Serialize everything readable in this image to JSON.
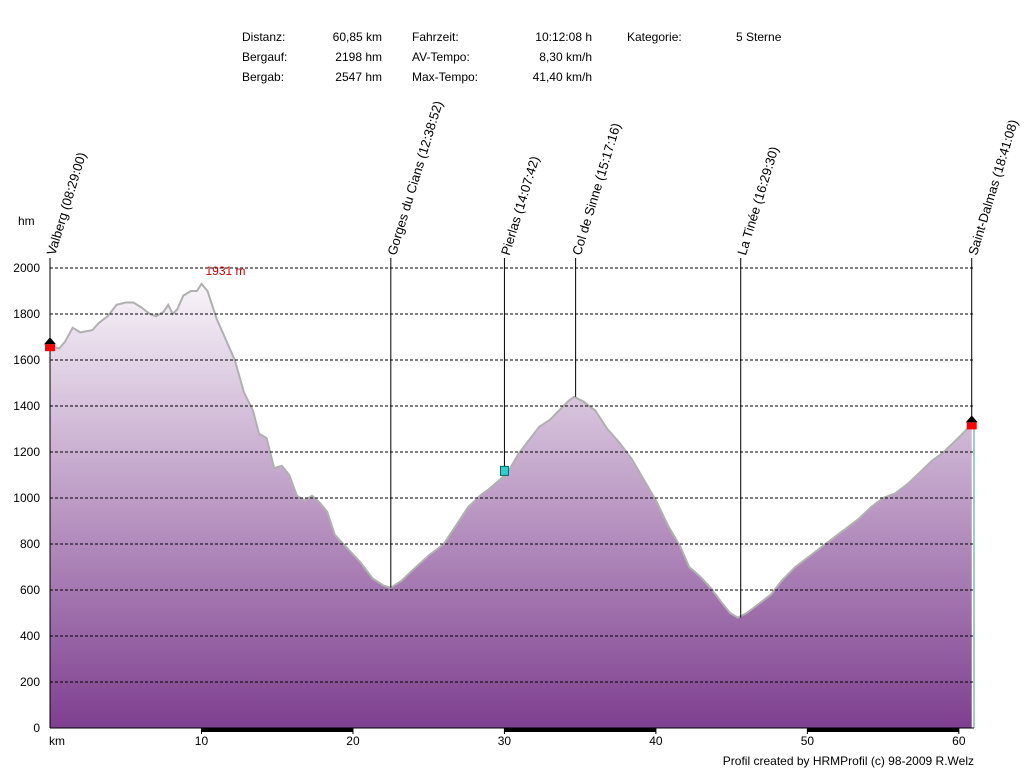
{
  "stats": {
    "col1": [
      {
        "label": "Distanz:",
        "value": "60,85 km"
      },
      {
        "label": "Bergauf:",
        "value": "2198 hm"
      },
      {
        "label": "Bergab:",
        "value": "2547 hm"
      }
    ],
    "col2": [
      {
        "label": "Fahrzeit:",
        "value": "10:12:08 h"
      },
      {
        "label": "AV-Tempo:",
        "value": "8,30 km/h"
      },
      {
        "label": "Max-Tempo:",
        "value": "41,40 km/h"
      }
    ],
    "col3": [
      {
        "label": "Kategorie:",
        "value": "5 Sterne"
      }
    ]
  },
  "footer": "Profil created by HRMProfil (c) 98-2009 R.Welz",
  "chart_data": {
    "type": "area",
    "ylabel": "hm",
    "xlabel": "km",
    "xlim": [
      0,
      61
    ],
    "ylim": [
      0,
      2000
    ],
    "yticks": [
      "0",
      "200",
      "400",
      "600",
      "800",
      "1000",
      "1200",
      "1400",
      "1600",
      "1800",
      "2000"
    ],
    "xticks": [
      "10",
      "20",
      "30",
      "40",
      "50",
      "60"
    ],
    "grid": true,
    "colors": {
      "fill_top": "#f8f4f9",
      "fill_bottom": "#7e3f8f",
      "outline": "#b0b0b0",
      "grid": "#000000",
      "marker": "#ff0000",
      "label_red": "#cc0000"
    },
    "max_label": "1931 m",
    "max_point": {
      "x": 10.0,
      "y": 1931
    },
    "profile": [
      [
        0,
        1660
      ],
      [
        0.6,
        1650
      ],
      [
        1.0,
        1680
      ],
      [
        1.5,
        1740
      ],
      [
        2.0,
        1720
      ],
      [
        2.8,
        1730
      ],
      [
        3.2,
        1760
      ],
      [
        3.8,
        1790
      ],
      [
        4.4,
        1840
      ],
      [
        5.0,
        1850
      ],
      [
        5.5,
        1850
      ],
      [
        6.0,
        1830
      ],
      [
        6.6,
        1800
      ],
      [
        7.0,
        1790
      ],
      [
        7.5,
        1810
      ],
      [
        7.8,
        1840
      ],
      [
        8.1,
        1800
      ],
      [
        8.4,
        1820
      ],
      [
        8.8,
        1880
      ],
      [
        9.3,
        1900
      ],
      [
        9.7,
        1900
      ],
      [
        10.0,
        1931
      ],
      [
        10.4,
        1900
      ],
      [
        11.0,
        1780
      ],
      [
        11.6,
        1690
      ],
      [
        12.2,
        1600
      ],
      [
        12.8,
        1460
      ],
      [
        13.4,
        1380
      ],
      [
        13.8,
        1280
      ],
      [
        14.3,
        1260
      ],
      [
        14.8,
        1130
      ],
      [
        15.3,
        1140
      ],
      [
        15.8,
        1100
      ],
      [
        16.3,
        1010
      ],
      [
        16.8,
        990
      ],
      [
        17.3,
        1010
      ],
      [
        17.8,
        980
      ],
      [
        18.3,
        940
      ],
      [
        18.8,
        840
      ],
      [
        19.5,
        790
      ],
      [
        20.5,
        720
      ],
      [
        21.3,
        650
      ],
      [
        22.0,
        620
      ],
      [
        22.5,
        610
      ],
      [
        23.2,
        640
      ],
      [
        24.0,
        690
      ],
      [
        25.0,
        750
      ],
      [
        26.0,
        800
      ],
      [
        26.8,
        880
      ],
      [
        27.6,
        960
      ],
      [
        28.4,
        1010
      ],
      [
        29.0,
        1040
      ],
      [
        29.7,
        1080
      ],
      [
        30.3,
        1120
      ],
      [
        30.9,
        1190
      ],
      [
        31.6,
        1250
      ],
      [
        32.3,
        1310
      ],
      [
        33.0,
        1340
      ],
      [
        33.6,
        1380
      ],
      [
        34.2,
        1420
      ],
      [
        34.6,
        1440
      ],
      [
        35.2,
        1420
      ],
      [
        36.0,
        1380
      ],
      [
        36.8,
        1300
      ],
      [
        37.6,
        1240
      ],
      [
        38.4,
        1170
      ],
      [
        39.2,
        1080
      ],
      [
        40.0,
        990
      ],
      [
        40.8,
        880
      ],
      [
        41.6,
        790
      ],
      [
        42.2,
        700
      ],
      [
        42.9,
        660
      ],
      [
        43.6,
        610
      ],
      [
        44.4,
        540
      ],
      [
        44.9,
        500
      ],
      [
        45.4,
        480
      ],
      [
        46.0,
        500
      ],
      [
        46.8,
        540
      ],
      [
        47.6,
        580
      ],
      [
        48.3,
        640
      ],
      [
        49.2,
        700
      ],
      [
        50.2,
        750
      ],
      [
        51.0,
        790
      ],
      [
        51.8,
        830
      ],
      [
        52.6,
        870
      ],
      [
        53.4,
        910
      ],
      [
        54.2,
        960
      ],
      [
        55.0,
        1000
      ],
      [
        55.8,
        1020
      ],
      [
        56.6,
        1060
      ],
      [
        57.4,
        1110
      ],
      [
        58.2,
        1160
      ],
      [
        59.0,
        1200
      ],
      [
        59.8,
        1250
      ],
      [
        60.85,
        1320
      ]
    ],
    "waypoints": [
      {
        "name": "Valberg (08:29:00)",
        "x": 0,
        "elev": 1660
      },
      {
        "name": "Gorges du Cians (12:38:52)",
        "x": 22.5,
        "elev": 610
      },
      {
        "name": "Pierlas (14:07:42)",
        "x": 30.0,
        "elev": 1120
      },
      {
        "name": "Col de Sinne (15:17:16)",
        "x": 34.7,
        "elev": 1440
      },
      {
        "name": "La Tinée (16:29:30)",
        "x": 45.6,
        "elev": 480
      },
      {
        "name": "Saint-Dalmas (18:41:08)",
        "x": 60.85,
        "elev": 1320
      }
    ],
    "black_segments": [
      [
        10,
        20
      ],
      [
        30,
        40
      ],
      [
        50,
        60
      ]
    ]
  }
}
